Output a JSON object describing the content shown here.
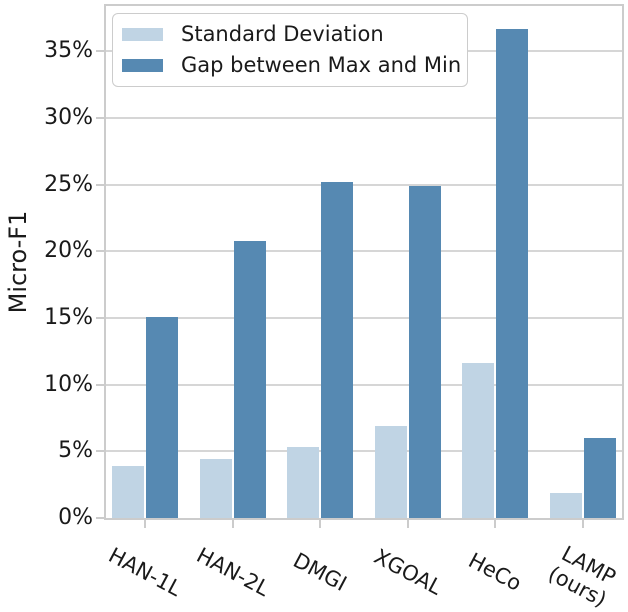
{
  "chart_data": {
    "type": "bar",
    "title": "",
    "xlabel": "",
    "ylabel": "Micro-F1",
    "categories": [
      "HAN-1L",
      "HAN-2L",
      "DMGI",
      "XGOAL",
      "HeCo",
      "LAMP\n(ours)"
    ],
    "series": [
      {
        "name": "Standard Deviation",
        "color": "#c0d4e4",
        "values": [
          3.9,
          4.4,
          5.3,
          6.9,
          11.6,
          1.9
        ]
      },
      {
        "name": "Gap between Max and Min",
        "color": "#5689b2",
        "values": [
          15.1,
          20.8,
          25.2,
          24.9,
          36.7,
          6.0
        ]
      }
    ],
    "ylim": [
      0,
      38.4
    ],
    "yticks": [
      0,
      5,
      10,
      15,
      20,
      25,
      30,
      35
    ],
    "ytick_labels": [
      "0%",
      "5%",
      "10%",
      "15%",
      "20%",
      "25%",
      "30%",
      "35%"
    ],
    "grid": "horizontal",
    "legend_position": "upper left"
  },
  "style": {
    "grid_color": "#d6d6d6",
    "spine_color": "#cccccc",
    "text_color": "#1a1a1a",
    "background": "#ffffff"
  }
}
